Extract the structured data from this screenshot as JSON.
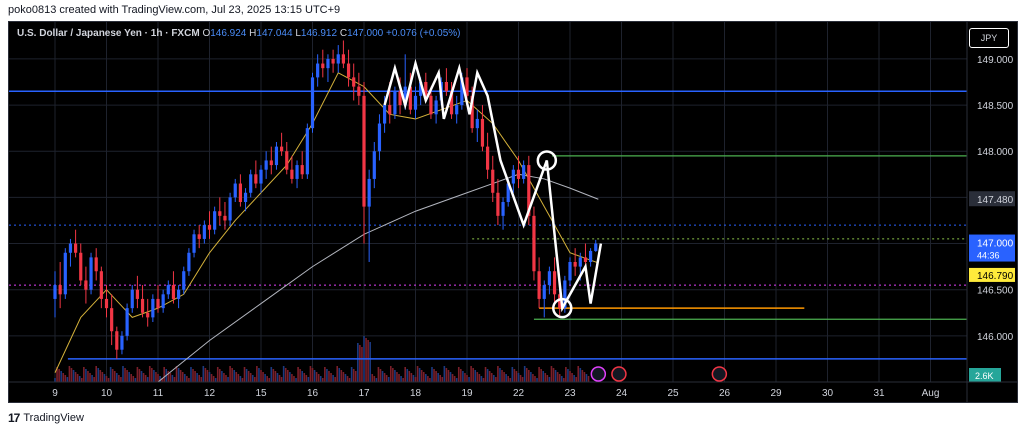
{
  "header": {
    "credit": "poko0813 created with TradingView.com, Jul 23, 2025 13:15 UTC+9"
  },
  "legend": {
    "symbol": "U.S. Dollar / Japanese Yen · 1h · FXCM",
    "o_label": "O",
    "o_value": "146.924",
    "h_label": "H",
    "h_value": "147.044",
    "l_label": "L",
    "l_value": "146.912",
    "c_label": "C",
    "c_value": "147.000",
    "change": "+0.076 (+0.05%)"
  },
  "currency_button": "JPY",
  "footer": {
    "brand": "TradingView",
    "logo": "tradingview-logo-icon"
  },
  "colors": {
    "up": "#2962ff",
    "down": "#f23645",
    "ma_fast": "#d4b13a",
    "ma_slow": "#b2b5be",
    "blue_level": "#2962ff",
    "green_level": "#4caf50",
    "orange_level": "#ff9800",
    "dotted_blue": "#2962ff",
    "dotted_magenta": "#e040fb",
    "dotted_green": "#8bc34a",
    "zigzag": "#ffffff",
    "price_label": "#2962ff",
    "ma_label": "#ffeb3b"
  },
  "chart_data": {
    "type": "candlestick",
    "title": "U.S. Dollar / Japanese Yen · 1h · FXCM",
    "ylim": [
      145.5,
      149.4
    ],
    "y_ticks": [
      "149.000",
      "148.500",
      "148.000",
      "146.500",
      "146.000"
    ],
    "x_ticks": [
      "9",
      "10",
      "11",
      "12",
      "15",
      "16",
      "17",
      "18",
      "19",
      "22",
      "23",
      "24",
      "25",
      "26",
      "29",
      "30",
      "31",
      "Aug"
    ],
    "x_tick_index": [
      0,
      1,
      2,
      3,
      4,
      5,
      6,
      7,
      8,
      9,
      10,
      11,
      12,
      13,
      14,
      15,
      16,
      17
    ],
    "last_index": 10.55,
    "candles": [
      [
        0.0,
        146.4,
        146.7,
        146.2,
        146.55
      ],
      [
        0.1,
        146.55,
        146.8,
        146.3,
        146.45
      ],
      [
        0.2,
        146.45,
        146.95,
        146.4,
        146.9
      ],
      [
        0.3,
        146.9,
        147.05,
        146.75,
        147.0
      ],
      [
        0.4,
        147.0,
        147.15,
        146.85,
        146.9
      ],
      [
        0.5,
        146.9,
        147.0,
        146.55,
        146.6
      ],
      [
        0.6,
        146.6,
        146.75,
        146.35,
        146.5
      ],
      [
        0.7,
        146.5,
        146.9,
        146.45,
        146.85
      ],
      [
        0.8,
        146.85,
        146.95,
        146.6,
        146.7
      ],
      [
        0.9,
        146.7,
        146.75,
        146.3,
        146.4
      ],
      [
        1.0,
        146.4,
        146.55,
        146.2,
        146.3
      ],
      [
        1.1,
        146.3,
        146.45,
        145.9,
        146.05
      ],
      [
        1.2,
        146.05,
        146.1,
        145.75,
        145.85
      ],
      [
        1.3,
        145.85,
        146.05,
        145.8,
        146.0
      ],
      [
        1.4,
        146.0,
        146.35,
        145.95,
        146.3
      ],
      [
        1.5,
        146.3,
        146.55,
        146.25,
        146.5
      ],
      [
        1.6,
        146.5,
        146.65,
        146.3,
        146.4
      ],
      [
        1.7,
        146.4,
        146.55,
        146.2,
        146.25
      ],
      [
        1.8,
        146.25,
        146.4,
        146.1,
        146.2
      ],
      [
        1.9,
        146.2,
        146.45,
        146.15,
        146.4
      ],
      [
        2.0,
        146.4,
        146.55,
        146.25,
        146.3
      ],
      [
        2.1,
        146.3,
        146.5,
        146.25,
        146.45
      ],
      [
        2.2,
        146.45,
        146.6,
        146.4,
        146.55
      ],
      [
        2.3,
        146.55,
        146.7,
        146.35,
        146.4
      ],
      [
        2.4,
        146.4,
        146.55,
        146.3,
        146.5
      ],
      [
        2.5,
        146.5,
        146.75,
        146.45,
        146.7
      ],
      [
        2.6,
        146.7,
        146.95,
        146.65,
        146.9
      ],
      [
        2.7,
        146.9,
        147.15,
        146.85,
        147.1
      ],
      [
        2.8,
        147.1,
        147.2,
        146.95,
        147.05
      ],
      [
        2.9,
        147.05,
        147.25,
        147.0,
        147.2
      ],
      [
        3.0,
        147.2,
        147.35,
        147.05,
        147.15
      ],
      [
        3.1,
        147.15,
        147.4,
        147.1,
        147.35
      ],
      [
        3.2,
        147.35,
        147.5,
        147.2,
        147.3
      ],
      [
        3.3,
        147.3,
        147.45,
        147.15,
        147.25
      ],
      [
        3.4,
        147.25,
        147.55,
        147.2,
        147.5
      ],
      [
        3.5,
        147.5,
        147.7,
        147.45,
        147.65
      ],
      [
        3.6,
        147.65,
        147.75,
        147.4,
        147.45
      ],
      [
        3.7,
        147.45,
        147.6,
        147.35,
        147.55
      ],
      [
        3.8,
        147.55,
        147.8,
        147.5,
        147.75
      ],
      [
        3.9,
        147.75,
        147.9,
        147.6,
        147.65
      ],
      [
        4.0,
        147.65,
        147.85,
        147.55,
        147.8
      ],
      [
        4.1,
        147.8,
        148.0,
        147.7,
        147.9
      ],
      [
        4.2,
        147.9,
        148.05,
        147.75,
        147.85
      ],
      [
        4.3,
        147.85,
        148.1,
        147.8,
        148.05
      ],
      [
        4.4,
        148.05,
        148.2,
        147.95,
        148.0
      ],
      [
        4.5,
        148.0,
        148.1,
        147.75,
        147.8
      ],
      [
        4.6,
        147.8,
        147.95,
        147.65,
        147.7
      ],
      [
        4.7,
        147.7,
        147.9,
        147.6,
        147.85
      ],
      [
        4.8,
        147.85,
        148.0,
        147.7,
        147.75
      ],
      [
        4.9,
        147.75,
        148.3,
        147.7,
        148.25
      ],
      [
        5.0,
        148.25,
        148.85,
        148.2,
        148.8
      ],
      [
        5.1,
        148.8,
        149.05,
        148.7,
        148.95
      ],
      [
        5.2,
        148.95,
        149.1,
        148.8,
        148.9
      ],
      [
        5.3,
        148.9,
        149.05,
        148.75,
        149.0
      ],
      [
        5.4,
        149.0,
        149.1,
        148.85,
        148.95
      ],
      [
        5.5,
        148.95,
        149.15,
        148.85,
        149.05
      ],
      [
        5.6,
        149.05,
        149.2,
        148.9,
        148.95
      ],
      [
        5.7,
        148.95,
        149.1,
        148.7,
        148.8
      ],
      [
        5.8,
        148.8,
        148.95,
        148.55,
        148.7
      ],
      [
        5.9,
        148.7,
        148.85,
        148.5,
        148.6
      ],
      [
        6.0,
        148.6,
        148.75,
        147.0,
        147.4
      ],
      [
        6.1,
        147.4,
        147.8,
        146.8,
        147.7
      ],
      [
        6.2,
        147.7,
        148.1,
        147.6,
        148.0
      ],
      [
        6.3,
        148.0,
        148.4,
        147.9,
        148.3
      ],
      [
        6.4,
        148.3,
        148.6,
        148.2,
        148.5
      ],
      [
        6.5,
        148.5,
        148.75,
        148.3,
        148.4
      ],
      [
        6.6,
        148.4,
        148.7,
        148.35,
        148.65
      ],
      [
        6.7,
        148.65,
        148.8,
        148.4,
        148.5
      ],
      [
        6.8,
        148.5,
        149.05,
        148.45,
        148.7
      ],
      [
        6.9,
        148.7,
        148.85,
        148.4,
        148.45
      ],
      [
        7.0,
        148.45,
        148.7,
        148.35,
        148.6
      ],
      [
        7.1,
        148.6,
        148.8,
        148.5,
        148.75
      ],
      [
        7.2,
        148.75,
        148.85,
        148.55,
        148.6
      ],
      [
        7.3,
        148.6,
        148.7,
        148.35,
        148.4
      ],
      [
        7.4,
        148.4,
        148.6,
        148.3,
        148.55
      ],
      [
        7.5,
        148.55,
        148.8,
        148.5,
        148.75
      ],
      [
        7.6,
        148.75,
        148.9,
        148.6,
        148.65
      ],
      [
        7.7,
        148.65,
        148.75,
        148.35,
        148.4
      ],
      [
        7.8,
        148.4,
        148.6,
        148.3,
        148.5
      ],
      [
        7.9,
        148.5,
        148.85,
        148.45,
        148.8
      ],
      [
        8.0,
        148.8,
        148.9,
        148.55,
        148.6
      ],
      [
        8.1,
        148.6,
        148.7,
        148.2,
        148.25
      ],
      [
        8.2,
        148.25,
        148.45,
        148.1,
        148.35
      ],
      [
        8.3,
        148.35,
        148.5,
        148.0,
        148.05
      ],
      [
        8.4,
        148.05,
        148.2,
        147.7,
        147.8
      ],
      [
        8.5,
        147.8,
        147.95,
        147.45,
        147.55
      ],
      [
        8.6,
        147.55,
        147.7,
        147.2,
        147.3
      ],
      [
        8.7,
        147.3,
        147.5,
        147.15,
        147.45
      ],
      [
        8.8,
        147.45,
        147.7,
        147.4,
        147.65
      ],
      [
        8.9,
        147.65,
        147.85,
        147.55,
        147.8
      ],
      [
        9.0,
        147.8,
        147.95,
        147.6,
        147.7
      ],
      [
        9.1,
        147.7,
        147.9,
        147.65,
        147.85
      ],
      [
        9.2,
        147.85,
        147.95,
        147.2,
        147.3
      ],
      [
        9.3,
        147.3,
        147.4,
        146.6,
        146.7
      ],
      [
        9.4,
        146.7,
        146.85,
        146.3,
        146.4
      ],
      [
        9.5,
        146.4,
        146.6,
        146.2,
        146.55
      ],
      [
        9.6,
        146.55,
        146.75,
        146.45,
        146.7
      ],
      [
        9.7,
        146.7,
        146.85,
        146.35,
        146.45
      ],
      [
        9.8,
        146.45,
        146.6,
        146.2,
        146.3
      ],
      [
        9.9,
        146.3,
        146.65,
        146.25,
        146.6
      ],
      [
        10.0,
        146.6,
        146.85,
        146.55,
        146.8
      ],
      [
        10.1,
        146.8,
        146.95,
        146.65,
        146.75
      ],
      [
        10.2,
        146.75,
        146.9,
        146.6,
        146.85
      ],
      [
        10.3,
        146.85,
        147.0,
        146.7,
        146.8
      ],
      [
        10.4,
        146.8,
        146.95,
        146.75,
        146.92
      ],
      [
        10.5,
        146.92,
        147.04,
        146.91,
        147.0
      ]
    ],
    "ma_fast": [
      [
        0,
        145.6
      ],
      [
        0.5,
        146.2
      ],
      [
        1.0,
        146.5
      ],
      [
        1.5,
        146.2
      ],
      [
        2.0,
        146.3
      ],
      [
        2.5,
        146.45
      ],
      [
        3.0,
        146.9
      ],
      [
        3.5,
        147.25
      ],
      [
        4.0,
        147.55
      ],
      [
        4.5,
        147.85
      ],
      [
        5.0,
        148.3
      ],
      [
        5.5,
        148.85
      ],
      [
        6.0,
        148.7
      ],
      [
        6.5,
        148.4
      ],
      [
        7.0,
        148.35
      ],
      [
        7.5,
        148.45
      ],
      [
        8.0,
        148.55
      ],
      [
        8.5,
        148.3
      ],
      [
        9.0,
        147.9
      ],
      [
        9.5,
        147.4
      ],
      [
        10.0,
        146.9
      ],
      [
        10.55,
        146.79
      ]
    ],
    "ma_slow": [
      [
        2.0,
        145.5
      ],
      [
        3.0,
        145.95
      ],
      [
        4.0,
        146.35
      ],
      [
        5.0,
        146.75
      ],
      [
        6.0,
        147.1
      ],
      [
        7.0,
        147.35
      ],
      [
        8.0,
        147.55
      ],
      [
        8.5,
        147.65
      ],
      [
        9.0,
        147.75
      ],
      [
        9.5,
        147.7
      ],
      [
        10.0,
        147.6
      ],
      [
        10.55,
        147.48
      ]
    ],
    "zigzag": [
      [
        6.4,
        148.5
      ],
      [
        6.6,
        148.9
      ],
      [
        6.8,
        148.5
      ],
      [
        7.0,
        148.95
      ],
      [
        7.2,
        148.55
      ],
      [
        7.45,
        148.85
      ],
      [
        7.55,
        148.35
      ],
      [
        7.85,
        148.9
      ],
      [
        8.05,
        148.4
      ],
      [
        8.2,
        148.85
      ],
      [
        8.4,
        148.6
      ],
      [
        8.65,
        147.9
      ],
      [
        9.1,
        147.2
      ],
      [
        9.55,
        147.9
      ],
      [
        9.85,
        146.3
      ],
      [
        10.3,
        146.75
      ],
      [
        10.4,
        146.35
      ],
      [
        10.6,
        147.0
      ]
    ],
    "pivot_circles": [
      [
        9.55,
        147.9
      ],
      [
        9.85,
        146.3
      ]
    ],
    "levels": {
      "blue_top": 148.65,
      "blue_bottom": 145.75,
      "green_top": 147.95,
      "green_bottom": 146.18,
      "orange": 146.3,
      "dotted_blue": 147.2,
      "dotted_green": 147.05,
      "dotted_magenta": 146.55
    },
    "price_labels": {
      "last_price": "147.000",
      "countdown": "44:36",
      "ma_fast_value": "146.790",
      "ma_slow_value": "147.480"
    },
    "volume_value": "2.6K",
    "event_icons": [
      "flag-icon",
      "flag-icon",
      "lightning-icon"
    ]
  }
}
